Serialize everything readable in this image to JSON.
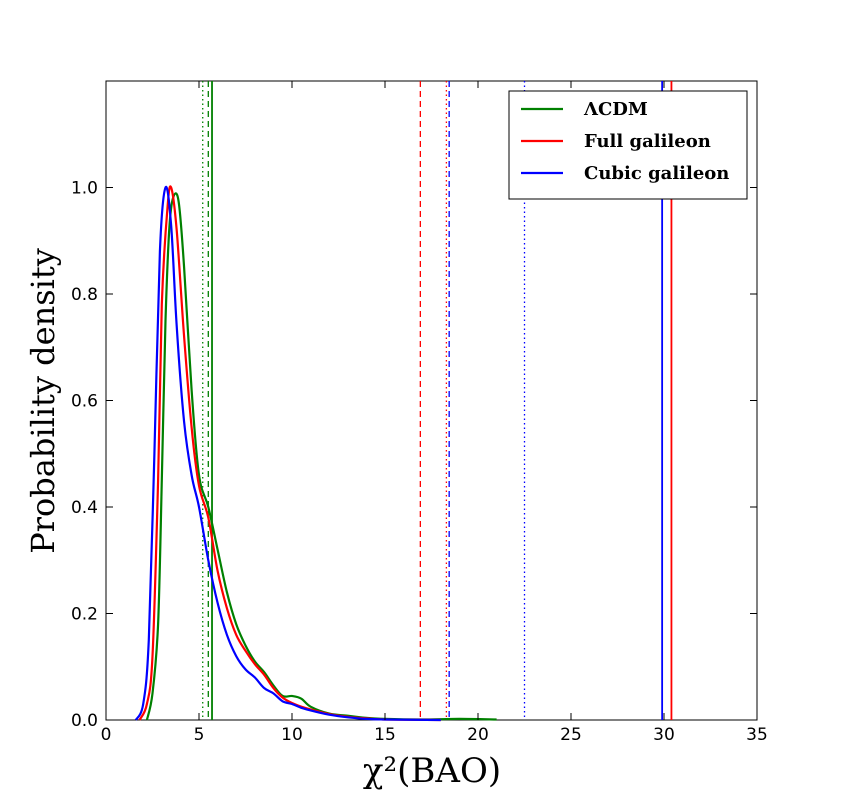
{
  "chart_data": {
    "type": "line",
    "xlabel": "χ²(BAO)",
    "ylabel": "Probability density",
    "xlim": [
      0,
      35
    ],
    "ylim": [
      0,
      1.2
    ],
    "xticks": [
      0,
      5,
      10,
      15,
      20,
      25,
      30,
      35
    ],
    "xtick_labels": [
      "0",
      "5",
      "10",
      "15",
      "20",
      "25",
      "30",
      "35"
    ],
    "yticks": [
      0.0,
      0.2,
      0.4,
      0.6,
      0.8,
      1.0
    ],
    "ytick_labels": [
      "0.0",
      "0.2",
      "0.4",
      "0.6",
      "0.8",
      "1.0"
    ],
    "legend_position": "top-right",
    "series": [
      {
        "name": "ΛCDM",
        "color": "#008000",
        "points": [
          [
            2.2,
            0
          ],
          [
            2.5,
            0.05
          ],
          [
            2.8,
            0.18
          ],
          [
            3.0,
            0.45
          ],
          [
            3.2,
            0.75
          ],
          [
            3.4,
            0.92
          ],
          [
            3.6,
            0.98
          ],
          [
            3.9,
            0.975
          ],
          [
            4.2,
            0.85
          ],
          [
            4.6,
            0.62
          ],
          [
            5.0,
            0.46
          ],
          [
            5.5,
            0.4
          ],
          [
            6.0,
            0.32
          ],
          [
            6.5,
            0.24
          ],
          [
            7.0,
            0.18
          ],
          [
            7.5,
            0.14
          ],
          [
            8.0,
            0.11
          ],
          [
            8.5,
            0.09
          ],
          [
            9.0,
            0.065
          ],
          [
            9.5,
            0.045
          ],
          [
            10.0,
            0.045
          ],
          [
            10.5,
            0.04
          ],
          [
            11.0,
            0.025
          ],
          [
            12.0,
            0.012
          ],
          [
            13.0,
            0.008
          ],
          [
            14.0,
            0.004
          ],
          [
            15.0,
            0.002
          ],
          [
            17.0,
            0.001
          ],
          [
            19.0,
            0.002
          ],
          [
            21.0,
            0.001
          ]
        ]
      },
      {
        "name": "Full galileon",
        "color": "#ff0000",
        "points": [
          [
            1.8,
            0
          ],
          [
            2.2,
            0.03
          ],
          [
            2.5,
            0.12
          ],
          [
            2.8,
            0.45
          ],
          [
            3.0,
            0.78
          ],
          [
            3.3,
            0.96
          ],
          [
            3.5,
            1.0
          ],
          [
            3.8,
            0.92
          ],
          [
            4.2,
            0.72
          ],
          [
            4.6,
            0.55
          ],
          [
            5.0,
            0.44
          ],
          [
            5.5,
            0.38
          ],
          [
            6.0,
            0.28
          ],
          [
            6.5,
            0.21
          ],
          [
            7.0,
            0.16
          ],
          [
            7.5,
            0.13
          ],
          [
            8.0,
            0.105
          ],
          [
            8.5,
            0.085
          ],
          [
            9.0,
            0.06
          ],
          [
            9.5,
            0.042
          ],
          [
            10.0,
            0.032
          ],
          [
            10.5,
            0.025
          ],
          [
            11.0,
            0.02
          ],
          [
            12.0,
            0.011
          ],
          [
            13.0,
            0.006
          ],
          [
            14.0,
            0.003
          ],
          [
            15.0,
            0.001
          ],
          [
            18.0,
            0.0
          ]
        ]
      },
      {
        "name": "Cubic galileon",
        "color": "#0000ff",
        "points": [
          [
            1.6,
            0
          ],
          [
            2.0,
            0.03
          ],
          [
            2.3,
            0.15
          ],
          [
            2.6,
            0.5
          ],
          [
            2.9,
            0.88
          ],
          [
            3.2,
            1.0
          ],
          [
            3.5,
            0.93
          ],
          [
            3.8,
            0.74
          ],
          [
            4.2,
            0.56
          ],
          [
            4.6,
            0.46
          ],
          [
            5.0,
            0.4
          ],
          [
            5.5,
            0.3
          ],
          [
            6.0,
            0.22
          ],
          [
            6.5,
            0.16
          ],
          [
            7.0,
            0.12
          ],
          [
            7.5,
            0.095
          ],
          [
            8.0,
            0.08
          ],
          [
            8.5,
            0.06
          ],
          [
            9.0,
            0.05
          ],
          [
            9.5,
            0.035
          ],
          [
            10.0,
            0.03
          ],
          [
            10.5,
            0.023
          ],
          [
            11.0,
            0.018
          ],
          [
            12.0,
            0.01
          ],
          [
            13.0,
            0.005
          ],
          [
            14.0,
            0.002
          ],
          [
            15.0,
            0.001
          ],
          [
            18.0,
            0.0
          ]
        ]
      }
    ],
    "vertical_lines": [
      {
        "x": 5.2,
        "color": "#008000",
        "style": "dotted"
      },
      {
        "x": 5.5,
        "color": "#008000",
        "style": "dashed"
      },
      {
        "x": 5.7,
        "color": "#008000",
        "style": "solid"
      },
      {
        "x": 16.9,
        "color": "#ff0000",
        "style": "dashed"
      },
      {
        "x": 18.3,
        "color": "#ff0000",
        "style": "dotted"
      },
      {
        "x": 18.45,
        "color": "#0000ff",
        "style": "dashed"
      },
      {
        "x": 22.5,
        "color": "#0000ff",
        "style": "dotted"
      },
      {
        "x": 29.9,
        "color": "#0000ff",
        "style": "solid"
      },
      {
        "x": 30.4,
        "color": "#ff0000",
        "style": "solid"
      }
    ]
  }
}
